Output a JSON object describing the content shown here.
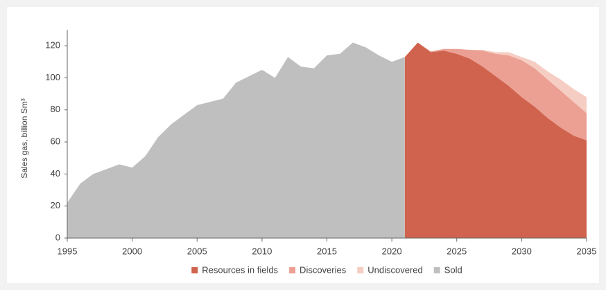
{
  "chart_data": {
    "type": "area",
    "y_label": "Sales gas, billion Sm³",
    "x": [
      1995,
      1996,
      1997,
      1998,
      1999,
      2000,
      2001,
      2002,
      2003,
      2004,
      2005,
      2006,
      2007,
      2008,
      2009,
      2010,
      2011,
      2012,
      2013,
      2014,
      2015,
      2016,
      2017,
      2018,
      2019,
      2020,
      2021,
      2022,
      2023,
      2024,
      2025,
      2026,
      2027,
      2028,
      2029,
      2030,
      2031,
      2032,
      2033,
      2034,
      2035
    ],
    "series": [
      {
        "name": "Resources in fields",
        "color": "#d0634e",
        "stacked": true,
        "values": [
          null,
          null,
          null,
          null,
          null,
          null,
          null,
          null,
          null,
          null,
          null,
          null,
          null,
          null,
          null,
          null,
          null,
          null,
          null,
          null,
          null,
          null,
          null,
          null,
          null,
          null,
          113,
          122,
          116,
          117,
          115,
          112,
          107,
          101,
          95,
          88,
          82,
          75,
          69,
          64,
          61
        ]
      },
      {
        "name": "Discoveries",
        "color": "#eba093",
        "stacked": true,
        "values": [
          null,
          null,
          null,
          null,
          null,
          null,
          null,
          null,
          null,
          null,
          null,
          null,
          null,
          null,
          null,
          null,
          null,
          null,
          null,
          null,
          null,
          null,
          null,
          null,
          null,
          null,
          0,
          0,
          0.5,
          1,
          3,
          5.5,
          10,
          14,
          19,
          23,
          24,
          24,
          23,
          21,
          17
        ]
      },
      {
        "name": "Undiscovered",
        "color": "#f6cdc3",
        "stacked": true,
        "values": [
          null,
          null,
          null,
          null,
          null,
          null,
          null,
          null,
          null,
          null,
          null,
          null,
          null,
          null,
          null,
          null,
          null,
          null,
          null,
          null,
          null,
          null,
          null,
          null,
          null,
          null,
          0,
          0,
          0,
          0,
          0,
          0,
          0.5,
          1,
          2,
          2,
          4,
          5,
          7,
          8,
          10
        ]
      },
      {
        "name": "Sold",
        "color": "#bfbfbf",
        "stacked": false,
        "values": [
          22,
          34,
          40,
          43,
          46,
          44,
          51,
          63,
          71,
          77,
          83,
          85,
          87,
          97,
          101,
          105,
          100,
          113,
          107,
          106,
          114,
          115,
          122,
          119,
          114,
          110,
          113,
          null,
          null,
          null,
          null,
          null,
          null,
          null,
          null,
          null,
          null,
          null,
          null,
          null,
          null
        ]
      }
    ],
    "xlim": [
      1995,
      2035
    ],
    "xticks": [
      1995,
      2000,
      2005,
      2010,
      2015,
      2020,
      2025,
      2030,
      2035
    ],
    "ylim": [
      0,
      130
    ],
    "yticks": [
      0,
      20,
      40,
      60,
      80,
      100,
      120
    ],
    "grid": false,
    "legend": "bottom"
  }
}
